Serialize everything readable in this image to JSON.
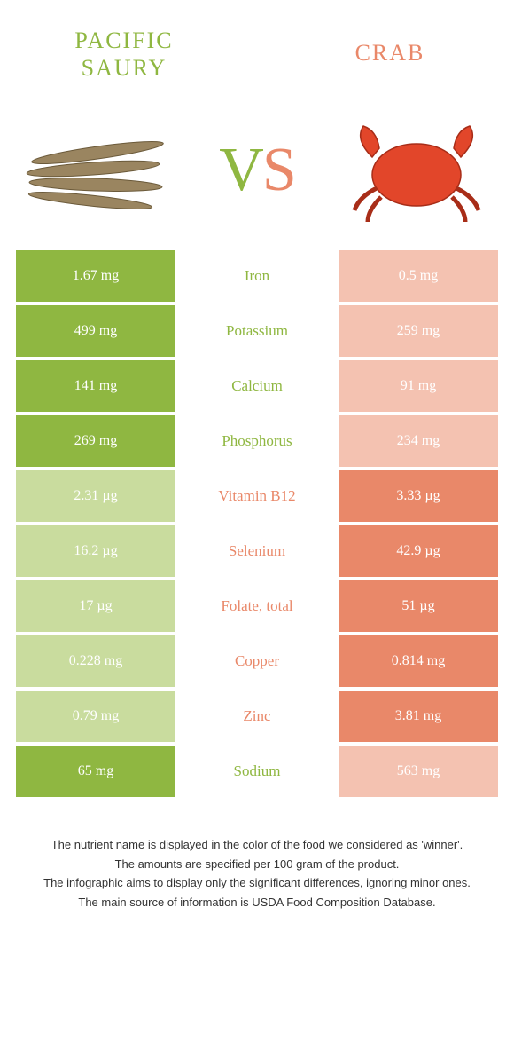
{
  "foods": {
    "left": {
      "name": "PACIFIC\nSAURY",
      "color": "#8fb741",
      "bg": "#8fb741",
      "bg_dim": "#c9dc9e"
    },
    "right": {
      "name": "CRAB",
      "color": "#e98869",
      "bg": "#e98869",
      "bg_dim": "#f4c2b1"
    }
  },
  "vs": {
    "v": "V",
    "s": "S"
  },
  "rows": [
    {
      "nutrient": "Iron",
      "left": "1.67 mg",
      "right": "0.5 mg",
      "winner": "left"
    },
    {
      "nutrient": "Potassium",
      "left": "499 mg",
      "right": "259 mg",
      "winner": "left"
    },
    {
      "nutrient": "Calcium",
      "left": "141 mg",
      "right": "91 mg",
      "winner": "left"
    },
    {
      "nutrient": "Phosphorus",
      "left": "269 mg",
      "right": "234 mg",
      "winner": "left"
    },
    {
      "nutrient": "Vitamin B12",
      "left": "2.31 µg",
      "right": "3.33 µg",
      "winner": "right"
    },
    {
      "nutrient": "Selenium",
      "left": "16.2 µg",
      "right": "42.9 µg",
      "winner": "right"
    },
    {
      "nutrient": "Folate, total",
      "left": "17 µg",
      "right": "51 µg",
      "winner": "right"
    },
    {
      "nutrient": "Copper",
      "left": "0.228 mg",
      "right": "0.814 mg",
      "winner": "right"
    },
    {
      "nutrient": "Zinc",
      "left": "0.79 mg",
      "right": "3.81 mg",
      "winner": "right"
    },
    {
      "nutrient": "Sodium",
      "left": "65 mg",
      "right": "563 mg",
      "winner": "left"
    }
  ],
  "footer": [
    "The nutrient name is displayed in the color of the food we considered as 'winner'.",
    "The amounts are specified per 100 gram of the product.",
    "The infographic aims to display only the significant differences, ignoring minor ones.",
    "The main source of information is USDA Food Composition Database."
  ]
}
